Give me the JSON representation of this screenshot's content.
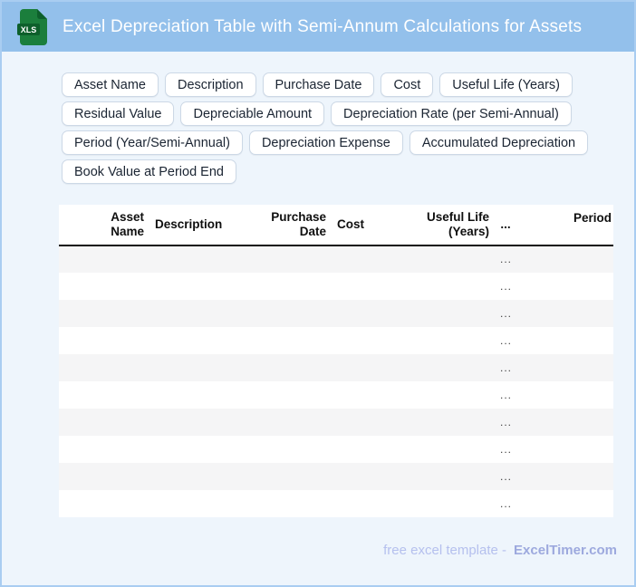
{
  "header": {
    "title": "Excel Depreciation Table with Semi-Annum Calculations for Assets",
    "icon_label": "XLS",
    "bar_color": "#93c0eb",
    "icon_green": "#1b7e3c",
    "icon_dark_green": "#0d5f2b"
  },
  "chips": {
    "rows": [
      [
        "Asset Name",
        "Description",
        "Purchase Date",
        "Cost",
        "Useful Life (Years)"
      ],
      [
        "Residual Value",
        "Depreciable Amount",
        "Depreciation Rate (per Semi-Annual)"
      ],
      [
        "Period (Year/Semi-Annual)",
        "Depreciation Expense",
        "Accumulated Depreciation"
      ],
      [
        "Book Value at Period End"
      ]
    ]
  },
  "table": {
    "columns": [
      {
        "label": "Asset\nName",
        "align": "right"
      },
      {
        "label": "Description",
        "align": "left"
      },
      {
        "label": "Purchase\nDate",
        "align": "right"
      },
      {
        "label": "Cost",
        "align": "left"
      },
      {
        "label": "Useful Life\n(Years)",
        "align": "right"
      },
      {
        "label": "...",
        "align": "center"
      },
      {
        "label": "Period",
        "align": "right"
      }
    ],
    "rows": [
      "...",
      "...",
      "...",
      "...",
      "...",
      "...",
      "...",
      "...",
      "...",
      "..."
    ]
  },
  "footer": {
    "text": "free excel template -",
    "brand": "ExcelTimer.com"
  }
}
